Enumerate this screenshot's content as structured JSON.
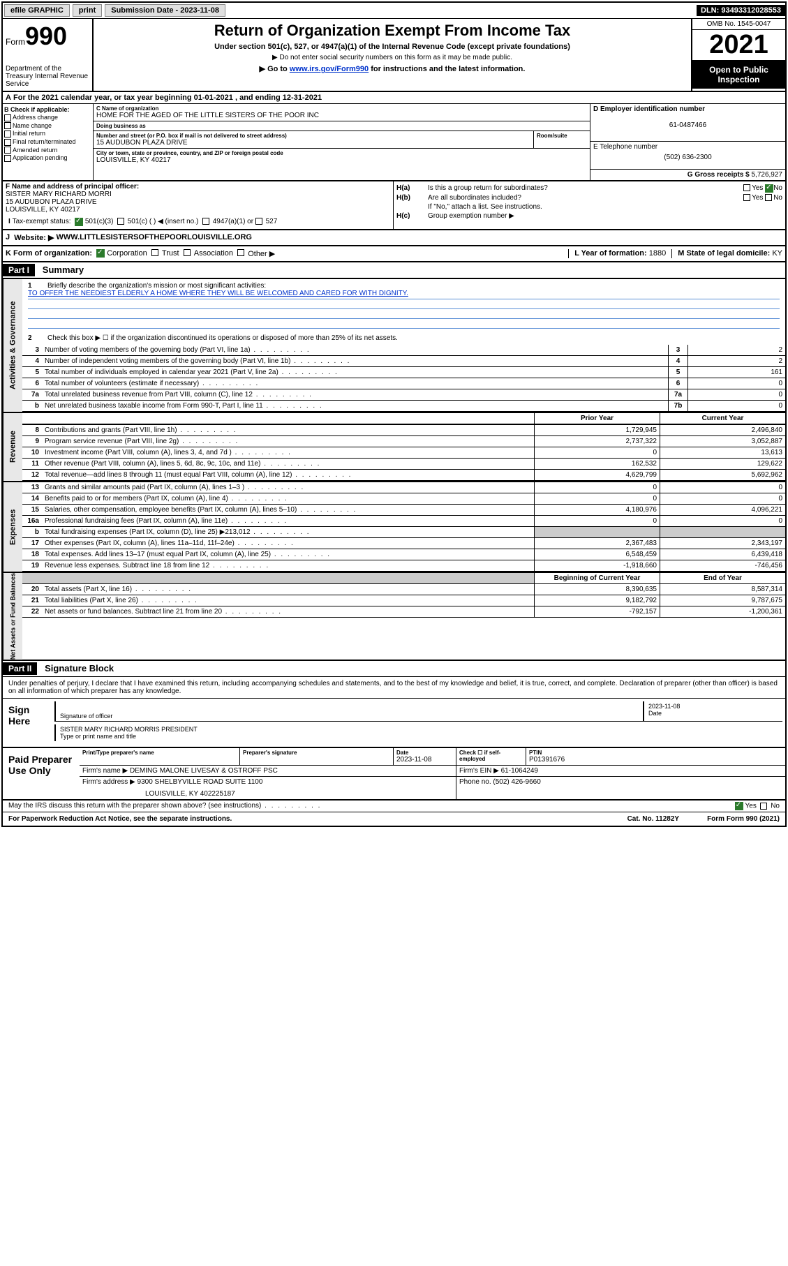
{
  "topbar": {
    "efile": "efile GRAPHIC",
    "print": "print",
    "sub_label": "Submission Date - ",
    "sub_date": "2023-11-08",
    "dln_label": "DLN: ",
    "dln": "93493312028553"
  },
  "header": {
    "form_prefix": "Form",
    "form_num": "990",
    "dept": "Department of the Treasury\nInternal Revenue Service",
    "title": "Return of Organization Exempt From Income Tax",
    "sub1": "Under section 501(c), 527, or 4947(a)(1) of the Internal Revenue Code (except private foundations)",
    "sub2": "▶ Do not enter social security numbers on this form as it may be made public.",
    "sub3_pre": "▶ Go to ",
    "sub3_link": "www.irs.gov/Form990",
    "sub3_post": " for instructions and the latest information.",
    "omb": "OMB No. 1545-0047",
    "year": "2021",
    "inspection": "Open to Public Inspection"
  },
  "period": {
    "text_a": "For the 2021 calendar year, or tax year beginning ",
    "begin": "01-01-2021",
    "text_b": " , and ending ",
    "end": "12-31-2021"
  },
  "section_b": {
    "label": "B Check if applicable:",
    "items": [
      "Address change",
      "Name change",
      "Initial return",
      "Final return/terminated",
      "Amended return",
      "Application pending"
    ]
  },
  "org": {
    "name_label": "C Name of organization",
    "name": "HOME FOR THE AGED OF THE LITTLE SISTERS OF THE POOR INC",
    "dba_label": "Doing business as",
    "street_label": "Number and street (or P.O. box if mail is not delivered to street address)",
    "street": "15 AUDUBON PLAZA DRIVE",
    "room_label": "Room/suite",
    "city_label": "City or town, state or province, country, and ZIP or foreign postal code",
    "city": "LOUISVILLE, KY  40217"
  },
  "right_col": {
    "ein_label": "D Employer identification number",
    "ein": "61-0487466",
    "phone_label": "E Telephone number",
    "phone": "(502) 636-2300",
    "gross_label": "G Gross receipts $ ",
    "gross": "5,726,927"
  },
  "section_f": {
    "label": "F Name and address of principal officer:",
    "name": "SISTER MARY RICHARD MORRI",
    "street": "15 AUDUBON PLAZA DRIVE",
    "city": "LOUISVILLE, KY  40217"
  },
  "section_h": {
    "a_label": "H(a)",
    "a_text": "Is this a group return for subordinates?",
    "b_label": "H(b)",
    "b_text": "Are all subordinates included?",
    "b_note": "If \"No,\" attach a list. See instructions.",
    "c_label": "H(c)",
    "c_text": "Group exemption number ▶",
    "yes": "Yes",
    "no": "No"
  },
  "row_i": {
    "label": "I",
    "text": "Tax-exempt status:",
    "opt1": "501(c)(3)",
    "opt2": "501(c) (  ) ◀ (insert no.)",
    "opt3": "4947(a)(1) or",
    "opt4": "527"
  },
  "row_j": {
    "label": "J",
    "text": "Website: ▶",
    "value": "WWW.LITTLESISTERSOFTHEPOORLOUISVILLE.ORG"
  },
  "row_k": {
    "label": "K Form of organization:",
    "opts": [
      "Corporation",
      "Trust",
      "Association",
      "Other ▶"
    ],
    "l_label": "L Year of formation: ",
    "l_val": "1880",
    "m_label": "M State of legal domicile: ",
    "m_val": "KY"
  },
  "part1": {
    "part": "Part I",
    "title": "Summary",
    "line1_num": "1",
    "line1": "Briefly describe the organization's mission or most significant activities:",
    "mission": "TO OFFER THE NEEDIEST ELDERLY A HOME WHERE THEY WILL BE WELCOMED AND CARED FOR WITH DIGNITY.",
    "line2_num": "2",
    "line2": "Check this box ▶ ☐ if the organization discontinued its operations or disposed of more than 25% of its net assets."
  },
  "governance": {
    "label": "Activities & Governance",
    "rows": [
      {
        "n": "3",
        "d": "Number of voting members of the governing body (Part VI, line 1a)",
        "c": "3",
        "v": "2"
      },
      {
        "n": "4",
        "d": "Number of independent voting members of the governing body (Part VI, line 1b)",
        "c": "4",
        "v": "2"
      },
      {
        "n": "5",
        "d": "Total number of individuals employed in calendar year 2021 (Part V, line 2a)",
        "c": "5",
        "v": "161"
      },
      {
        "n": "6",
        "d": "Total number of volunteers (estimate if necessary)",
        "c": "6",
        "v": "0"
      },
      {
        "n": "7a",
        "d": "Total unrelated business revenue from Part VIII, column (C), line 12",
        "c": "7a",
        "v": "0"
      },
      {
        "n": "b",
        "d": "Net unrelated business taxable income from Form 990-T, Part I, line 11",
        "c": "7b",
        "v": "0"
      }
    ]
  },
  "twocol_headers": {
    "prior": "Prior Year",
    "current": "Current Year",
    "begin": "Beginning of Current Year",
    "end": "End of Year"
  },
  "revenue": {
    "label": "Revenue",
    "rows": [
      {
        "n": "8",
        "d": "Contributions and grants (Part VIII, line 1h)",
        "p": "1,729,945",
        "c": "2,496,840"
      },
      {
        "n": "9",
        "d": "Program service revenue (Part VIII, line 2g)",
        "p": "2,737,322",
        "c": "3,052,887"
      },
      {
        "n": "10",
        "d": "Investment income (Part VIII, column (A), lines 3, 4, and 7d )",
        "p": "0",
        "c": "13,613"
      },
      {
        "n": "11",
        "d": "Other revenue (Part VIII, column (A), lines 5, 6d, 8c, 9c, 10c, and 11e)",
        "p": "162,532",
        "c": "129,622"
      },
      {
        "n": "12",
        "d": "Total revenue—add lines 8 through 11 (must equal Part VIII, column (A), line 12)",
        "p": "4,629,799",
        "c": "5,692,962"
      }
    ]
  },
  "expenses": {
    "label": "Expenses",
    "rows": [
      {
        "n": "13",
        "d": "Grants and similar amounts paid (Part IX, column (A), lines 1–3 )",
        "p": "0",
        "c": "0"
      },
      {
        "n": "14",
        "d": "Benefits paid to or for members (Part IX, column (A), line 4)",
        "p": "0",
        "c": "0"
      },
      {
        "n": "15",
        "d": "Salaries, other compensation, employee benefits (Part IX, column (A), lines 5–10)",
        "p": "4,180,976",
        "c": "4,096,221"
      },
      {
        "n": "16a",
        "d": "Professional fundraising fees (Part IX, column (A), line 11e)",
        "p": "0",
        "c": "0"
      },
      {
        "n": "b",
        "d": "Total fundraising expenses (Part IX, column (D), line 25) ▶213,012",
        "p": "grey",
        "c": "grey"
      },
      {
        "n": "17",
        "d": "Other expenses (Part IX, column (A), lines 11a–11d, 11f–24e)",
        "p": "2,367,483",
        "c": "2,343,197"
      },
      {
        "n": "18",
        "d": "Total expenses. Add lines 13–17 (must equal Part IX, column (A), line 25)",
        "p": "6,548,459",
        "c": "6,439,418"
      },
      {
        "n": "19",
        "d": "Revenue less expenses. Subtract line 18 from line 12",
        "p": "-1,918,660",
        "c": "-746,456"
      }
    ]
  },
  "netassets": {
    "label": "Net Assets or Fund Balances",
    "rows": [
      {
        "n": "20",
        "d": "Total assets (Part X, line 16)",
        "p": "8,390,635",
        "c": "8,587,314"
      },
      {
        "n": "21",
        "d": "Total liabilities (Part X, line 26)",
        "p": "9,182,792",
        "c": "9,787,675"
      },
      {
        "n": "22",
        "d": "Net assets or fund balances. Subtract line 21 from line 20",
        "p": "-792,157",
        "c": "-1,200,361"
      }
    ]
  },
  "part2": {
    "part": "Part II",
    "title": "Signature Block",
    "intro": "Under penalties of perjury, I declare that I have examined this return, including accompanying schedules and statements, and to the best of my knowledge and belief, it is true, correct, and complete. Declaration of preparer (other than officer) is based on all information of which preparer has any knowledge."
  },
  "sign": {
    "label": "Sign Here",
    "sig_label": "Signature of officer",
    "date_label": "Date",
    "date": "2023-11-08",
    "name": "SISTER MARY RICHARD MORRIS  PRESIDENT",
    "name_label": "Type or print name and title"
  },
  "preparer": {
    "label": "Paid Preparer Use Only",
    "h1": "Print/Type preparer's name",
    "h2": "Preparer's signature",
    "h3": "Date",
    "date": "2023-11-08",
    "h4": "Check ☐ if self-employed",
    "h5": "PTIN",
    "ptin": "P01391676",
    "firm_name_label": "Firm's name    ▶ ",
    "firm_name": "DEMING MALONE LIVESAY & OSTROFF PSC",
    "firm_ein_label": "Firm's EIN ▶ ",
    "firm_ein": "61-1064249",
    "firm_addr_label": "Firm's address ▶ ",
    "firm_addr1": "9300 SHELBYVILLE ROAD SUITE 1100",
    "firm_addr2": "LOUISVILLE, KY  402225187",
    "phone_label": "Phone no. ",
    "phone": "(502) 426-9660"
  },
  "footer": {
    "discuss": "May the IRS discuss this return with the preparer shown above? (see instructions)",
    "yes": "Yes",
    "no": "No",
    "paperwork": "For Paperwork Reduction Act Notice, see the separate instructions.",
    "cat": "Cat. No. 11282Y",
    "form": "Form 990 (2021)"
  }
}
